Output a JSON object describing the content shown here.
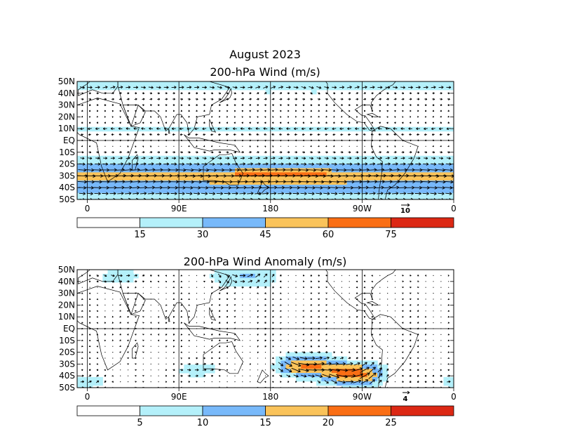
{
  "figure": {
    "title_line1": "August 2023"
  },
  "colors": {
    "c0": "#ffffff",
    "c1": "#b4f0fa",
    "c2": "#78b9fa",
    "c3": "#fac35a",
    "c4": "#fa6e14",
    "c5": "#dc2814",
    "vector": "#000000",
    "coast": "#000000"
  },
  "chart_data": [
    {
      "type": "vector-map",
      "title": "200-hPa Wind (m/s)",
      "x_ticks": [
        "0",
        "90E",
        "180",
        "90W",
        "0"
      ],
      "y_ticks": [
        "50N",
        "40N",
        "30N",
        "20N",
        "10N",
        "EQ",
        "10S",
        "20S",
        "30S",
        "40S",
        "50S"
      ],
      "x_range": [
        -10,
        360
      ],
      "y_range": [
        -50,
        50
      ],
      "colorbar_levels": [
        "15",
        "30",
        "45",
        "60",
        "75"
      ],
      "reference_vector": "10",
      "bands": [
        {
          "lat": 45,
          "speed": 22
        },
        {
          "lat": 40,
          "speed": 10
        },
        {
          "lat": 35,
          "speed": 12
        },
        {
          "lat": 30,
          "speed": 8
        },
        {
          "lat": 20,
          "speed": 4
        },
        {
          "lat": 10,
          "speed": -18
        },
        {
          "lat": 5,
          "speed": -12
        },
        {
          "lat": 0,
          "speed": -5
        },
        {
          "lat": -10,
          "speed": 12
        },
        {
          "lat": -20,
          "speed": 26
        },
        {
          "lat": -25,
          "speed": 38
        },
        {
          "lat": -30,
          "speed": 52
        },
        {
          "lat": -35,
          "speed": 42
        },
        {
          "lat": -40,
          "speed": 36
        },
        {
          "lat": -45,
          "speed": 30
        },
        {
          "lat": -50,
          "speed": 24
        }
      ]
    },
    {
      "type": "vector-map",
      "title": "200-hPa Wind Anomaly (m/s)",
      "x_ticks": [
        "0",
        "90E",
        "180",
        "90W",
        "0"
      ],
      "y_ticks": [
        "50N",
        "40N",
        "30N",
        "20N",
        "10N",
        "EQ",
        "10S",
        "20S",
        "30S",
        "40S",
        "50S"
      ],
      "x_range": [
        -10,
        360
      ],
      "y_range": [
        -50,
        50
      ],
      "colorbar_levels": [
        "5",
        "10",
        "15",
        "20",
        "25"
      ],
      "reference_vector": "4",
      "anomaly_regions": [
        {
          "lon": 215,
          "lat": -32,
          "speed": 21
        },
        {
          "lon": 260,
          "lat": -38,
          "speed": 22
        },
        {
          "lon": 30,
          "lat": 45,
          "speed": 8
        },
        {
          "lon": 150,
          "lat": 45,
          "speed": 10
        },
        {
          "lon": 110,
          "lat": -35,
          "speed": 7
        },
        {
          "lon": 0,
          "lat": -45,
          "speed": 6
        }
      ]
    }
  ]
}
